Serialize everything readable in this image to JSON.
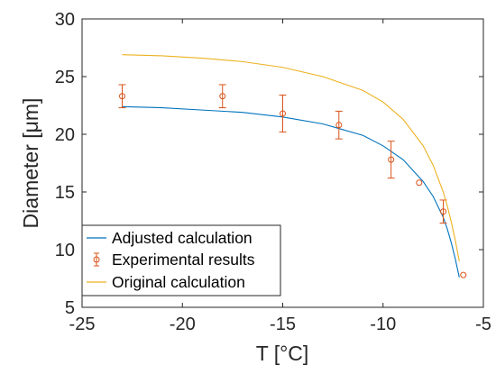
{
  "chart_data": {
    "type": "line",
    "xlabel": "T [°C]",
    "ylabel": "Diameter [μm]",
    "xlim": [
      -25,
      -5
    ],
    "ylim": [
      5,
      30
    ],
    "xticks": [
      -25,
      -20,
      -15,
      -10,
      -5
    ],
    "yticks": [
      5,
      10,
      15,
      20,
      25,
      30
    ],
    "xtick_labels": [
      "-25",
      "-20",
      "-15",
      "-10",
      "-5"
    ],
    "ytick_labels": [
      "5",
      "10",
      "15",
      "20",
      "25",
      "30"
    ],
    "grid": false,
    "legend_position": "bottom-left",
    "series": [
      {
        "name": "Adjusted calculation",
        "kind": "line",
        "color": "#0072BD",
        "x": [
          -23,
          -21,
          -19,
          -17,
          -15,
          -13,
          -11,
          -10,
          -9,
          -8,
          -7.5,
          -7,
          -6.8,
          -6.6,
          -6.4,
          -6.2
        ],
        "y": [
          22.4,
          22.3,
          22.1,
          21.9,
          21.5,
          20.9,
          19.9,
          19.0,
          17.8,
          15.9,
          14.6,
          12.8,
          11.8,
          10.6,
          9.2,
          7.6
        ]
      },
      {
        "name": "Experimental results",
        "kind": "errorbar",
        "color": "#D95319",
        "x": [
          -23,
          -18,
          -15,
          -12.2,
          -9.6,
          -8.2,
          -7,
          -6
        ],
        "y": [
          23.3,
          23.3,
          21.8,
          20.8,
          17.8,
          15.8,
          13.3,
          7.8
        ],
        "err": [
          1.0,
          1.0,
          1.6,
          1.2,
          1.6,
          0,
          1.0,
          0
        ]
      },
      {
        "name": "Original calculation",
        "kind": "line",
        "color": "#EDB120",
        "x": [
          -23,
          -21,
          -19,
          -17,
          -15,
          -13,
          -11,
          -10,
          -9,
          -8,
          -7.5,
          -7,
          -6.8,
          -6.6,
          -6.4,
          -6.2
        ],
        "y": [
          26.9,
          26.8,
          26.6,
          26.3,
          25.8,
          25.0,
          23.8,
          22.8,
          21.3,
          19.0,
          17.3,
          15.0,
          13.8,
          12.4,
          10.8,
          9.0
        ]
      }
    ]
  }
}
